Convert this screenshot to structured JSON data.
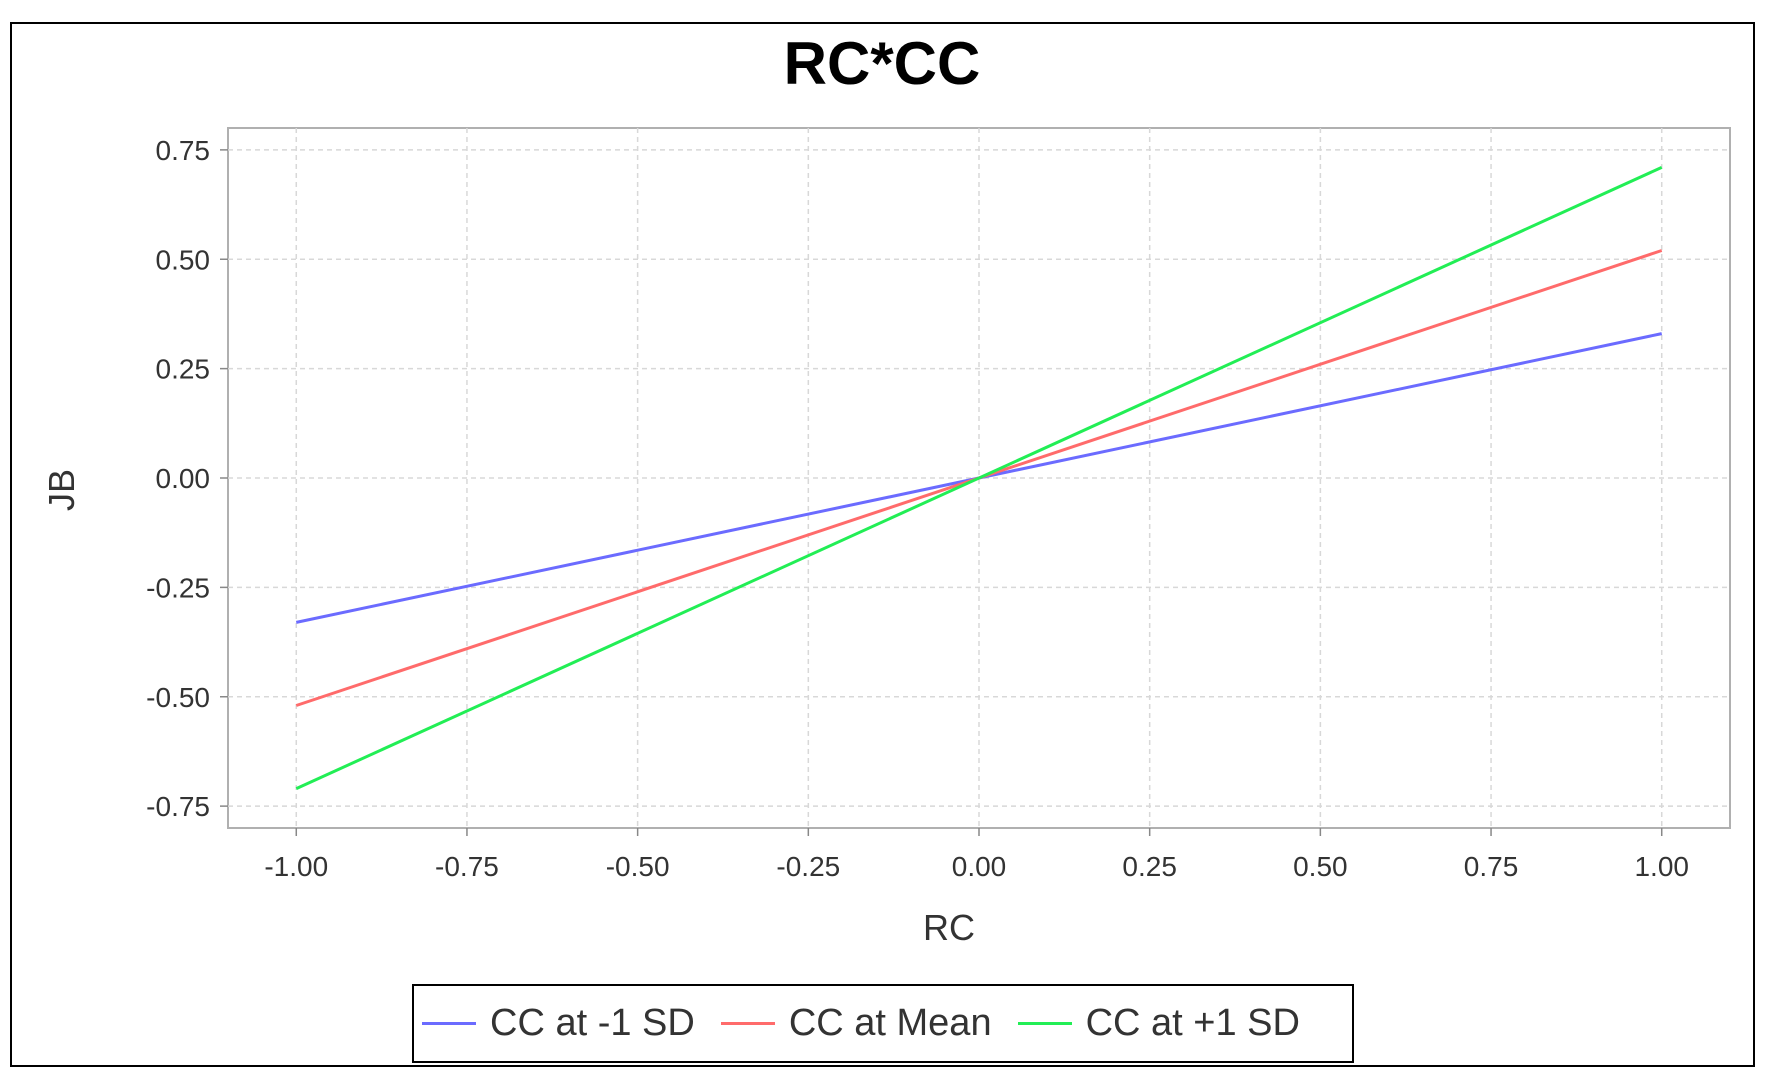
{
  "chart_data": {
    "type": "line",
    "title": "RC*CC",
    "xlabel": "RC",
    "ylabel": "JB",
    "xlim": [
      -1.1,
      1.1
    ],
    "ylim": [
      -0.8,
      0.8
    ],
    "xticks": [
      "-1.00",
      "-0.75",
      "-0.50",
      "-0.25",
      "0.00",
      "0.25",
      "0.50",
      "0.75",
      "1.00"
    ],
    "xtick_values": [
      -1.0,
      -0.75,
      -0.5,
      -0.25,
      0.0,
      0.25,
      0.5,
      0.75,
      1.0
    ],
    "yticks": [
      "0.75",
      "0.50",
      "0.25",
      "0.00",
      "-0.25",
      "-0.50",
      "-0.75"
    ],
    "ytick_values": [
      0.75,
      0.5,
      0.25,
      0.0,
      -0.25,
      -0.5,
      -0.75
    ],
    "grid": true,
    "legend_position": "bottom",
    "series": [
      {
        "name": "CC at -1 SD",
        "color": "#6b6bff",
        "x": [
          -1.0,
          1.0
        ],
        "y": [
          -0.33,
          0.33
        ]
      },
      {
        "name": "CC at Mean",
        "color": "#ff6b6b",
        "x": [
          -1.0,
          1.0
        ],
        "y": [
          -0.52,
          0.52
        ]
      },
      {
        "name": "CC at +1 SD",
        "color": "#22ee55",
        "x": [
          -1.0,
          1.0
        ],
        "y": [
          -0.71,
          0.71
        ]
      }
    ]
  }
}
